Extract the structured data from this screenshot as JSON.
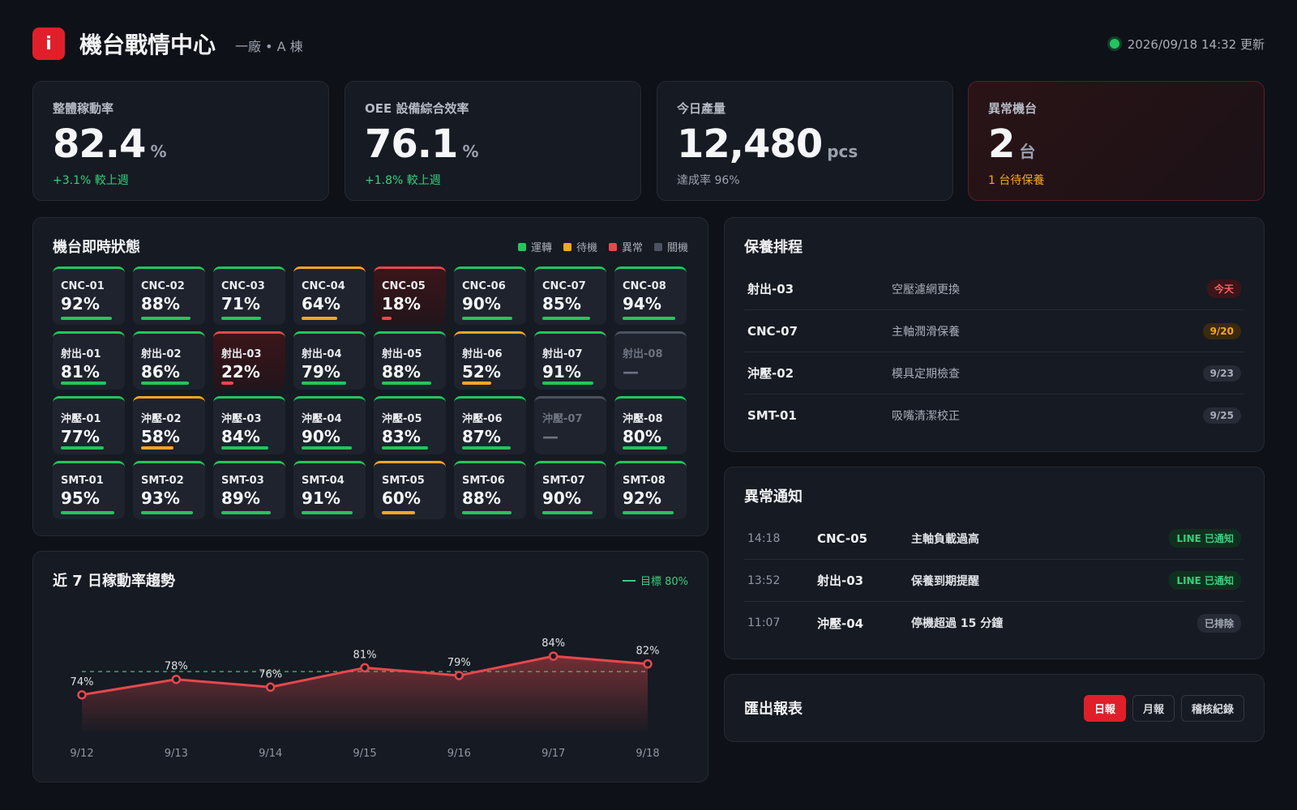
{
  "header": {
    "logo": "i",
    "title": "機台戰情中心",
    "subtitle": "一廠 • A 棟",
    "updated": "2026/09/18 14:32 更新"
  },
  "kpis": [
    {
      "label": "整體稼動率",
      "value": "82.4",
      "unit": "%",
      "sub": "+3.1% 較上週"
    },
    {
      "label": "OEE 設備綜合效率",
      "value": "76.1",
      "unit": "%",
      "sub": "+1.8% 較上週"
    },
    {
      "label": "今日產量",
      "value": "12,480",
      "unit": "pcs",
      "sub": "達成率 96%"
    },
    {
      "label": "異常機台",
      "value": "2",
      "unit": "台",
      "sub": "1 台待保養"
    }
  ],
  "status": {
    "title": "機台即時狀態",
    "legend": [
      "運轉",
      "待機",
      "異常",
      "關機"
    ],
    "colors": {
      "run": "#22c55e",
      "idle": "#f5a623",
      "err": "#e5484d",
      "off": "#4b5260"
    },
    "machines": [
      {
        "name": "CNC-01",
        "pct": "92%",
        "value": 92,
        "state": "run"
      },
      {
        "name": "CNC-02",
        "pct": "88%",
        "value": 88,
        "state": "run"
      },
      {
        "name": "CNC-03",
        "pct": "71%",
        "value": 71,
        "state": "run"
      },
      {
        "name": "CNC-04",
        "pct": "64%",
        "value": 64,
        "state": "idle"
      },
      {
        "name": "CNC-05",
        "pct": "18%",
        "value": 18,
        "state": "err"
      },
      {
        "name": "CNC-06",
        "pct": "90%",
        "value": 90,
        "state": "run"
      },
      {
        "name": "CNC-07",
        "pct": "85%",
        "value": 85,
        "state": "run"
      },
      {
        "name": "CNC-08",
        "pct": "94%",
        "value": 94,
        "state": "run"
      },
      {
        "name": "射出-01",
        "pct": "81%",
        "value": 81,
        "state": "run"
      },
      {
        "name": "射出-02",
        "pct": "86%",
        "value": 86,
        "state": "run"
      },
      {
        "name": "射出-03",
        "pct": "22%",
        "value": 22,
        "state": "err"
      },
      {
        "name": "射出-04",
        "pct": "79%",
        "value": 79,
        "state": "run"
      },
      {
        "name": "射出-05",
        "pct": "88%",
        "value": 88,
        "state": "run"
      },
      {
        "name": "射出-06",
        "pct": "52%",
        "value": 52,
        "state": "idle"
      },
      {
        "name": "射出-07",
        "pct": "91%",
        "value": 91,
        "state": "run"
      },
      {
        "name": "射出-08",
        "pct": "—",
        "value": 0,
        "state": "off"
      },
      {
        "name": "沖壓-01",
        "pct": "77%",
        "value": 77,
        "state": "run"
      },
      {
        "name": "沖壓-02",
        "pct": "58%",
        "value": 58,
        "state": "idle"
      },
      {
        "name": "沖壓-03",
        "pct": "84%",
        "value": 84,
        "state": "run"
      },
      {
        "name": "沖壓-04",
        "pct": "90%",
        "value": 90,
        "state": "run"
      },
      {
        "name": "沖壓-05",
        "pct": "83%",
        "value": 83,
        "state": "run"
      },
      {
        "name": "沖壓-06",
        "pct": "87%",
        "value": 87,
        "state": "run"
      },
      {
        "name": "沖壓-07",
        "pct": "—",
        "value": 0,
        "state": "off"
      },
      {
        "name": "沖壓-08",
        "pct": "80%",
        "value": 80,
        "state": "run"
      },
      {
        "name": "SMT-01",
        "pct": "95%",
        "value": 95,
        "state": "run"
      },
      {
        "name": "SMT-02",
        "pct": "93%",
        "value": 93,
        "state": "run"
      },
      {
        "name": "SMT-03",
        "pct": "89%",
        "value": 89,
        "state": "run"
      },
      {
        "name": "SMT-04",
        "pct": "91%",
        "value": 91,
        "state": "run"
      },
      {
        "name": "SMT-05",
        "pct": "60%",
        "value": 60,
        "state": "idle"
      },
      {
        "name": "SMT-06",
        "pct": "88%",
        "value": 88,
        "state": "run"
      },
      {
        "name": "SMT-07",
        "pct": "90%",
        "value": 90,
        "state": "run"
      },
      {
        "name": "SMT-08",
        "pct": "92%",
        "value": 92,
        "state": "run"
      }
    ]
  },
  "trend": {
    "title": "近 7 日稼動率趨勢",
    "target_label": "目標 80%"
  },
  "chart_data": {
    "type": "line",
    "categories": [
      "9/12",
      "9/13",
      "9/14",
      "9/15",
      "9/16",
      "9/17",
      "9/18"
    ],
    "values": [
      74,
      78,
      76,
      81,
      79,
      84,
      82
    ],
    "labels": [
      "74%",
      "78%",
      "76%",
      "81%",
      "79%",
      "84%",
      "82%"
    ],
    "target": 80,
    "ylim": [
      66,
      88
    ],
    "title": "近 7 日稼動率趨勢",
    "line_color": "#e5484d",
    "target_color": "#35d07f",
    "grid": false,
    "legend": "top-right"
  },
  "maintenance": {
    "title": "保養排程",
    "rows": [
      {
        "machine": "射出-03",
        "task": "空壓濾網更換",
        "date": "今天",
        "tone": "red"
      },
      {
        "machine": "CNC-07",
        "task": "主軸潤滑保養",
        "date": "9/20",
        "tone": "amber"
      },
      {
        "machine": "沖壓-02",
        "task": "模具定期檢查",
        "date": "9/23",
        "tone": "gray"
      },
      {
        "machine": "SMT-01",
        "task": "吸嘴清潔校正",
        "date": "9/25",
        "tone": "gray"
      }
    ]
  },
  "alerts": {
    "title": "異常通知",
    "rows": [
      {
        "time": "14:18",
        "machine": "CNC-05",
        "msg": "主軸負載過高",
        "status": "LINE 已通知",
        "tone": "green"
      },
      {
        "time": "13:52",
        "machine": "射出-03",
        "msg": "保養到期提醒",
        "status": "LINE 已通知",
        "tone": "green"
      },
      {
        "time": "11:07",
        "machine": "沖壓-04",
        "msg": "停機超過 15 分鐘",
        "status": "已排除",
        "tone": "gray"
      }
    ]
  },
  "export": {
    "title": "匯出報表",
    "buttons": [
      "日報",
      "月報",
      "稽核紀錄"
    ],
    "active": "日報"
  }
}
